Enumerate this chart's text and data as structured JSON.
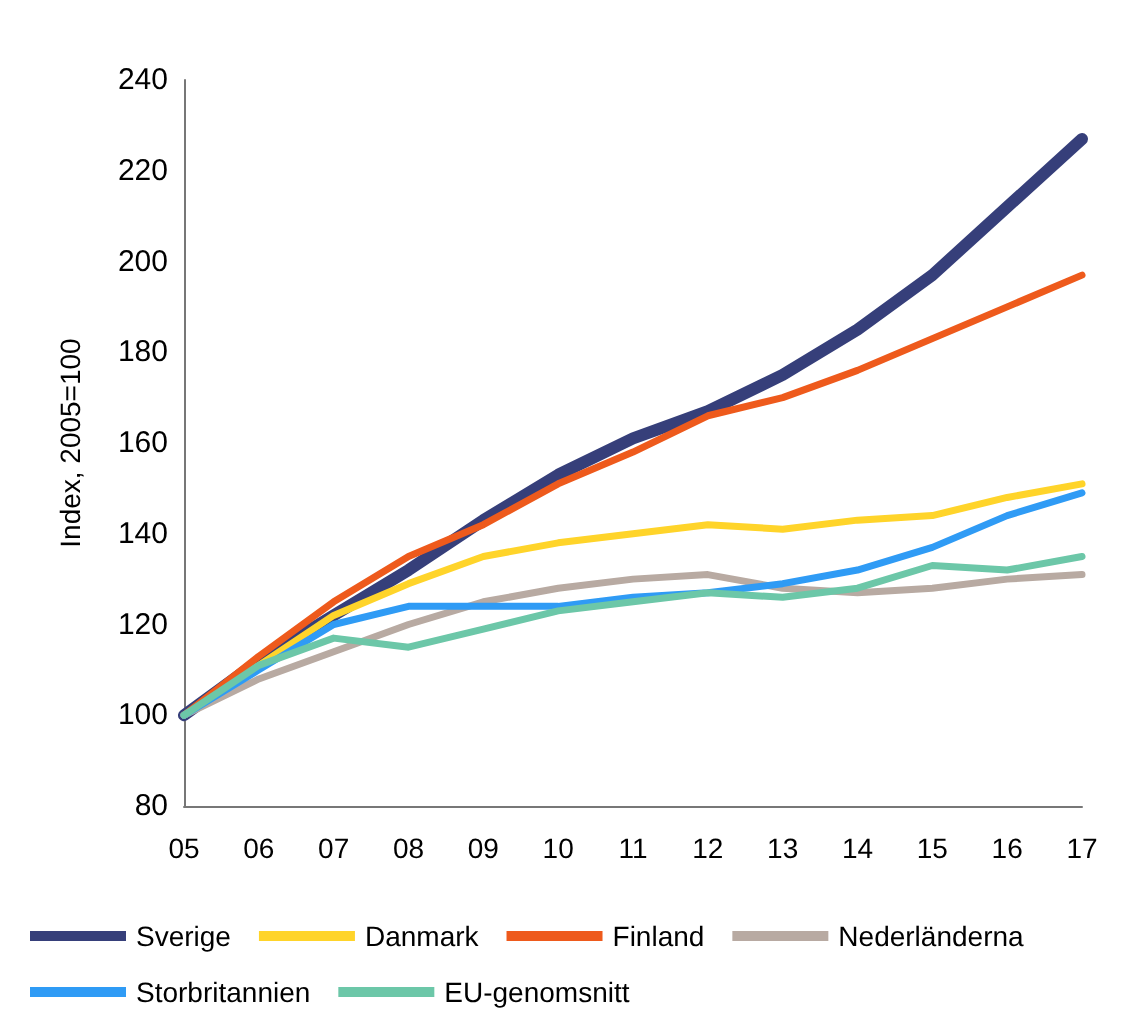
{
  "chart_data": {
    "type": "line",
    "ylabel": "Index, 2005=100",
    "categories": [
      "05",
      "06",
      "07",
      "08",
      "09",
      "10",
      "11",
      "12",
      "13",
      "14",
      "15",
      "16",
      "17"
    ],
    "ylim": [
      80,
      240
    ],
    "yticks": [
      80,
      100,
      120,
      140,
      160,
      180,
      200,
      220,
      240
    ],
    "grid": false,
    "legend": "bottom",
    "marker": "none",
    "line_style": "solid",
    "series": [
      {
        "name": "Sverige",
        "color": "#363f7a",
        "values": [
          100,
          112,
          122,
          132,
          143,
          153,
          161,
          167,
          175,
          185,
          197,
          212,
          227
        ]
      },
      {
        "name": "Danmark",
        "color": "#ffd42a",
        "values": [
          100,
          111,
          122,
          129,
          135,
          138,
          140,
          142,
          141,
          143,
          144,
          148,
          151
        ]
      },
      {
        "name": "Finland",
        "color": "#ee5a1c",
        "values": [
          100,
          113,
          125,
          135,
          142,
          151,
          158,
          166,
          170,
          176,
          183,
          190,
          197
        ]
      },
      {
        "name": "Nederländerna",
        "color": "#b8aaa2",
        "values": [
          100,
          108,
          114,
          120,
          125,
          128,
          130,
          131,
          128,
          127,
          128,
          130,
          131
        ]
      },
      {
        "name": "Storbritannien",
        "color": "#2f9bf5",
        "values": [
          100,
          110,
          120,
          124,
          124,
          124,
          126,
          127,
          129,
          132,
          137,
          144,
          149
        ]
      },
      {
        "name": "EU-genomsnitt",
        "color": "#6cc7a8",
        "values": [
          100,
          111,
          117,
          115,
          119,
          123,
          125,
          127,
          126,
          128,
          133,
          132,
          135
        ]
      }
    ]
  }
}
